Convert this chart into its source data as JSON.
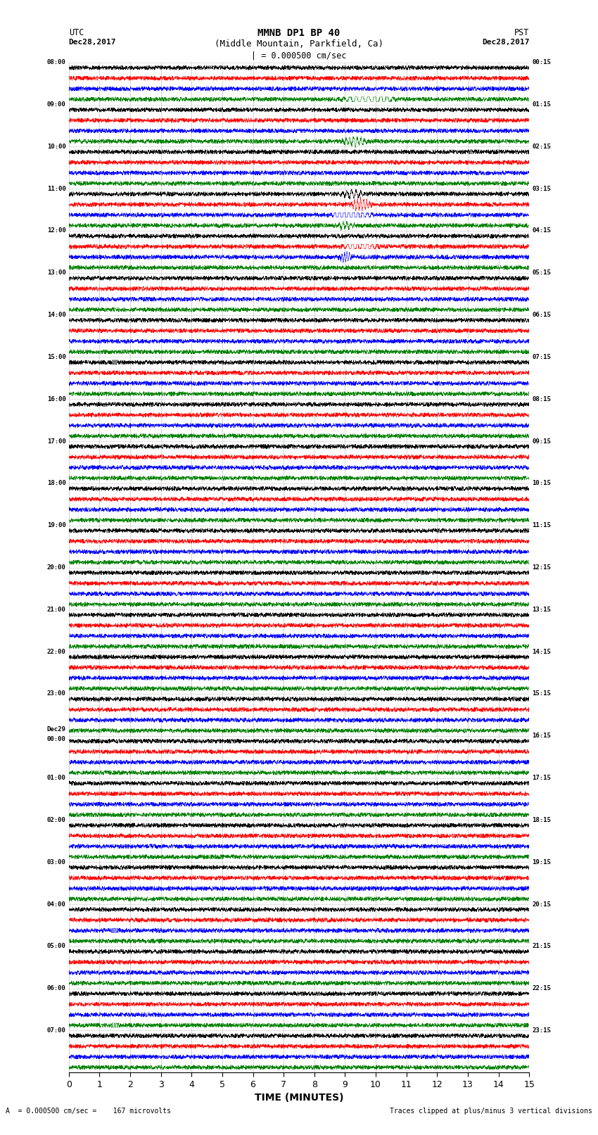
{
  "title_line1": "MMNB DP1 BP 40",
  "title_line2": "(Middle Mountain, Parkfield, Ca)",
  "scale_bar_text": "| = 0.000500 cm/sec",
  "left_label": "UTC",
  "right_label": "PST",
  "left_date": "Dec28,2017",
  "right_date": "Dec28,2017",
  "bottom_label": "TIME (MINUTES)",
  "footnote_left": "A  = 0.000500 cm/sec =    167 microvolts",
  "footnote_right": "Traces clipped at plus/minus 3 vertical divisions",
  "colors": [
    "black",
    "red",
    "blue",
    "green"
  ],
  "num_hours": 24,
  "traces_per_hour": 4,
  "x_ticks": [
    0,
    1,
    2,
    3,
    4,
    5,
    6,
    7,
    8,
    9,
    10,
    11,
    12,
    13,
    14,
    15
  ],
  "xlim": [
    0,
    15
  ],
  "background_color": "white",
  "fig_width": 8.5,
  "fig_height": 16.13,
  "left_times": [
    "08:00",
    "09:00",
    "10:00",
    "11:00",
    "12:00",
    "13:00",
    "14:00",
    "15:00",
    "16:00",
    "17:00",
    "18:00",
    "19:00",
    "20:00",
    "21:00",
    "22:00",
    "23:00",
    "Dec29\n00:00",
    "01:00",
    "02:00",
    "03:00",
    "04:00",
    "05:00",
    "06:00",
    "07:00"
  ],
  "right_times": [
    "00:15",
    "01:15",
    "02:15",
    "03:15",
    "04:15",
    "05:15",
    "06:15",
    "07:15",
    "08:15",
    "09:15",
    "10:15",
    "11:15",
    "12:15",
    "13:15",
    "14:15",
    "15:15",
    "16:15",
    "17:15",
    "18:15",
    "19:15",
    "20:15",
    "21:15",
    "22:15",
    "23:15"
  ]
}
